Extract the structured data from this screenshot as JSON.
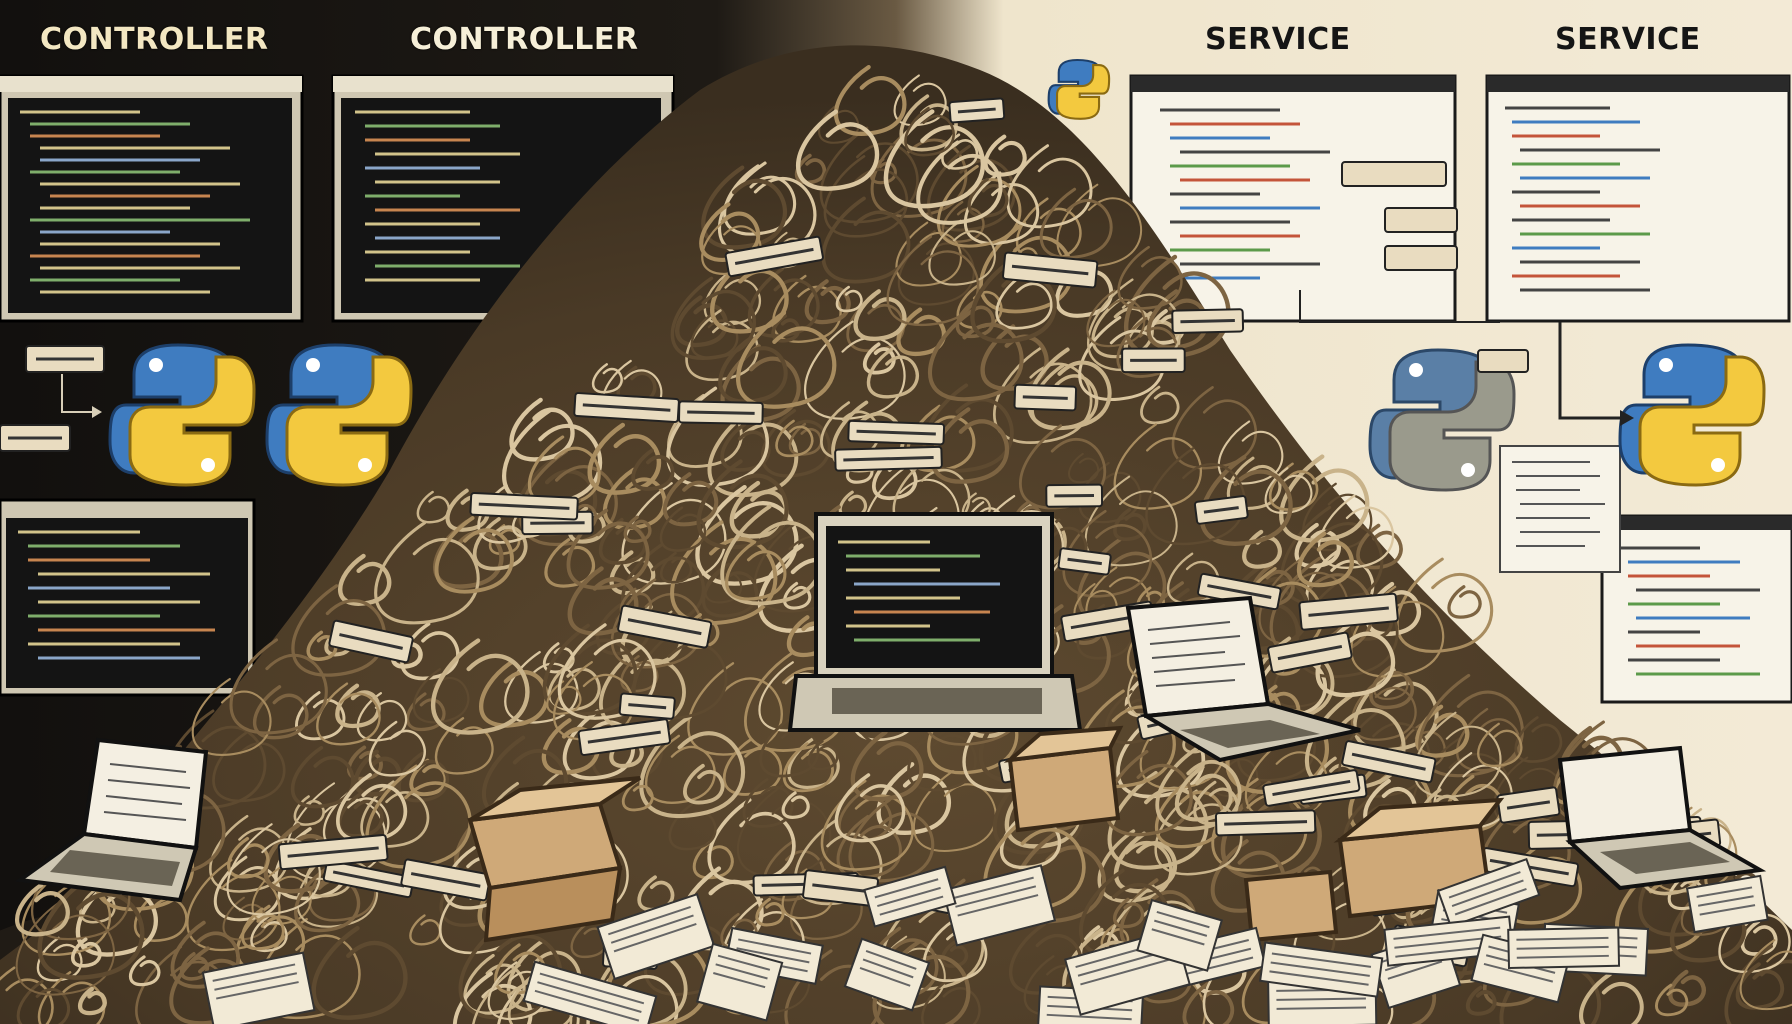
{
  "headings": {
    "left_1": "CONTROLLER",
    "left_2": "CONTROLLER",
    "right_1": "SERVICE",
    "right_2": "SERVICE"
  },
  "colors": {
    "left_background": "#15120f",
    "right_background": "#f1e8d2",
    "wire": "#6b5534",
    "wire_light": "#c9b38a",
    "tag": "#e9dcc0",
    "python_blue": "#3f7cc0",
    "python_yellow": "#f3c93f",
    "screen_dark": "#141414",
    "cardboard": "#cfa978"
  },
  "icons": [
    "python-logo-icon",
    "code-window-icon",
    "laptop-icon",
    "cardboard-box-icon",
    "paper-document-icon",
    "label-tag-icon",
    "arrow-right-icon"
  ]
}
